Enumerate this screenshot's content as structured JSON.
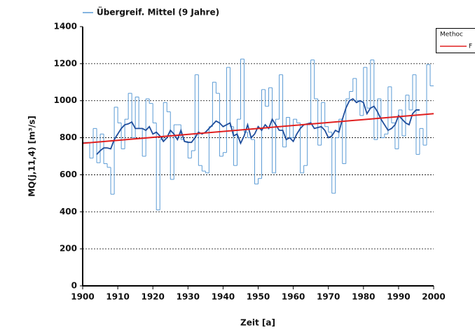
{
  "chart_data": {
    "type": "step",
    "xlabel": "Zeit [a]",
    "ylabel": "MQ(j,11,4) [m³/s]",
    "x": [
      1900,
      1901,
      1902,
      1903,
      1904,
      1905,
      1906,
      1907,
      1908,
      1909,
      1910,
      1911,
      1912,
      1913,
      1914,
      1915,
      1916,
      1917,
      1918,
      1919,
      1920,
      1921,
      1922,
      1923,
      1924,
      1925,
      1926,
      1927,
      1928,
      1929,
      1930,
      1931,
      1932,
      1933,
      1934,
      1935,
      1936,
      1937,
      1938,
      1939,
      1940,
      1941,
      1942,
      1943,
      1944,
      1945,
      1946,
      1947,
      1948,
      1949,
      1950,
      1951,
      1952,
      1953,
      1954,
      1955,
      1956,
      1957,
      1958,
      1959,
      1960,
      1961,
      1962,
      1963,
      1964,
      1965,
      1966,
      1967,
      1968,
      1969,
      1970,
      1971,
      1972,
      1973,
      1974,
      1975,
      1976,
      1977,
      1978,
      1979,
      1980,
      1981,
      1982,
      1983,
      1984,
      1985,
      1986,
      1987,
      1988,
      1989,
      1990,
      1991,
      1992,
      1993,
      1994,
      1995,
      1996,
      1997,
      1998,
      1999
    ],
    "series": [
      {
        "color": "#5b9bd5",
        "values": [
          775,
          775,
          690,
          850,
          665,
          820,
          660,
          640,
          495,
          965,
          880,
          740,
          900,
          1040,
          800,
          1020,
          850,
          700,
          1010,
          985,
          880,
          410,
          790,
          990,
          940,
          575,
          870,
          870,
          790,
          780,
          690,
          730,
          1140,
          650,
          620,
          610,
          860,
          1100,
          1040,
          700,
          720,
          1180,
          860,
          650,
          900,
          1225,
          830,
          800,
          790,
          550,
          580,
          1060,
          970,
          1070,
          610,
          900,
          1140,
          750,
          910,
          800,
          900,
          880,
          610,
          650,
          870,
          1220,
          1010,
          760,
          990,
          860,
          830,
          500,
          800,
          900,
          660,
          1010,
          1050,
          1120,
          1000,
          920,
          1180,
          960,
          1220,
          790,
          1010,
          800,
          820,
          1075,
          880,
          740,
          950,
          810,
          1030,
          950,
          1140,
          710,
          850,
          760,
          1195,
          1080
        ]
      },
      {
        "name": "Übergreif. Mittel (9 Jahre)",
        "color": "#1f4e9c",
        "values": [
          null,
          null,
          null,
          null,
          710,
          730,
          745,
          745,
          740,
          790,
          820,
          850,
          870,
          875,
          885,
          850,
          850,
          850,
          840,
          860,
          820,
          830,
          810,
          780,
          800,
          840,
          820,
          790,
          840,
          780,
          775,
          775,
          800,
          830,
          820,
          830,
          850,
          870,
          890,
          880,
          860,
          870,
          880,
          810,
          820,
          770,
          810,
          870,
          800,
          820,
          860,
          840,
          870,
          850,
          900,
          870,
          840,
          840,
          790,
          800,
          780,
          820,
          850,
          870,
          875,
          880,
          850,
          855,
          860,
          840,
          800,
          810,
          840,
          830,
          900,
          960,
          1000,
          1010,
          990,
          1000,
          990,
          930,
          960,
          970,
          940,
          900,
          870,
          840,
          850,
          870,
          920,
          900,
          880,
          870,
          930,
          950,
          950,
          null,
          null,
          null
        ]
      }
    ],
    "trend": {
      "name": "F",
      "color": "#e02020",
      "x": [
        1900,
        2000
      ],
      "values": [
        770,
        930
      ]
    },
    "legend2_title": "Methoc",
    "xlim": [
      1900,
      2000
    ],
    "xticks": [
      1900,
      1910,
      1920,
      1930,
      1940,
      1950,
      1960,
      1970,
      1980,
      1990,
      2000
    ],
    "ylim": [
      0,
      1400
    ],
    "yticks": [
      0,
      200,
      400,
      600,
      800,
      1000,
      1200,
      1400
    ],
    "grid": true
  }
}
